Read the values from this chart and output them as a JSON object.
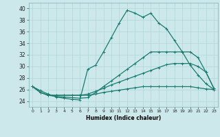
{
  "xlabel": "Humidex (Indice chaleur)",
  "xlim": [
    -0.5,
    23.5
  ],
  "ylim": [
    23,
    41
  ],
  "yticks": [
    24,
    26,
    28,
    30,
    32,
    34,
    36,
    38,
    40
  ],
  "xticks": [
    0,
    1,
    2,
    3,
    4,
    5,
    6,
    7,
    8,
    9,
    10,
    11,
    12,
    13,
    14,
    15,
    16,
    17,
    18,
    19,
    20,
    21,
    22,
    23
  ],
  "bg_color": "#cce8ea",
  "line_color": "#1a7a6e",
  "grid_color": "#b0d8da",
  "series": [
    [
      26.5,
      25.8,
      25.2,
      24.7,
      24.5,
      24.3,
      24.2,
      29.5,
      30.2,
      32.5,
      35.0,
      37.5,
      39.7,
      39.2,
      38.5,
      39.2,
      37.5,
      36.5,
      34.5,
      32.5,
      30.2,
      28.5,
      27.0,
      26.0
    ],
    [
      26.5,
      25.5,
      25.0,
      24.8,
      24.7,
      24.6,
      24.5,
      24.6,
      25.5,
      26.5,
      27.5,
      28.5,
      29.5,
      30.5,
      31.5,
      32.5,
      32.5,
      32.5,
      32.5,
      32.5,
      32.5,
      31.5,
      29.0,
      26.2
    ],
    [
      26.5,
      25.5,
      25.0,
      25.0,
      25.0,
      25.0,
      25.0,
      25.2,
      25.7,
      26.2,
      26.8,
      27.3,
      27.8,
      28.3,
      28.8,
      29.3,
      29.8,
      30.3,
      30.5,
      30.5,
      30.5,
      30.0,
      29.0,
      26.2
    ],
    [
      26.5,
      25.5,
      25.0,
      25.0,
      25.0,
      25.0,
      25.0,
      25.0,
      25.2,
      25.5,
      25.7,
      25.9,
      26.1,
      26.3,
      26.5,
      26.5,
      26.5,
      26.5,
      26.5,
      26.5,
      26.5,
      26.3,
      26.1,
      26.0
    ]
  ]
}
